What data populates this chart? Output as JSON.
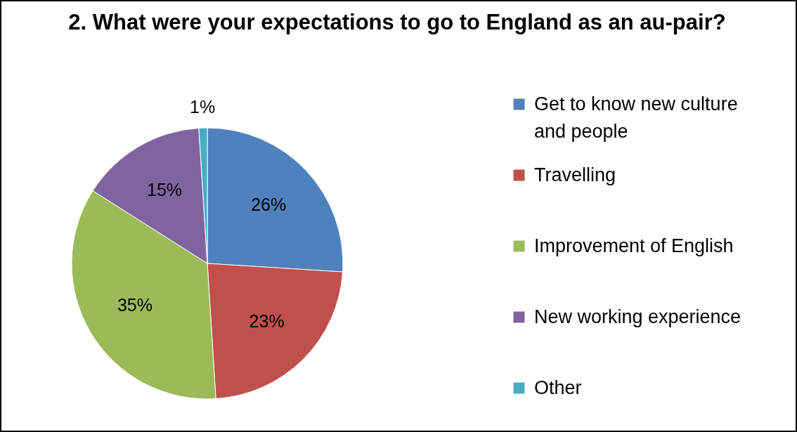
{
  "chart_data": {
    "type": "pie",
    "title": "2. What were your expectations to go to England as an au-pair?",
    "categories": [
      "Get to know new culture and people",
      "Travelling",
      "Improvement of English",
      "New working experience",
      "Other"
    ],
    "values": [
      26,
      23,
      35,
      15,
      1
    ],
    "colors": [
      "#4f81bd",
      "#c0504d",
      "#9bbb59",
      "#8064a2",
      "#4bacc6"
    ],
    "value_labels": [
      "26%",
      "23%",
      "35%",
      "15%",
      "1%"
    ],
    "legend": "right"
  }
}
